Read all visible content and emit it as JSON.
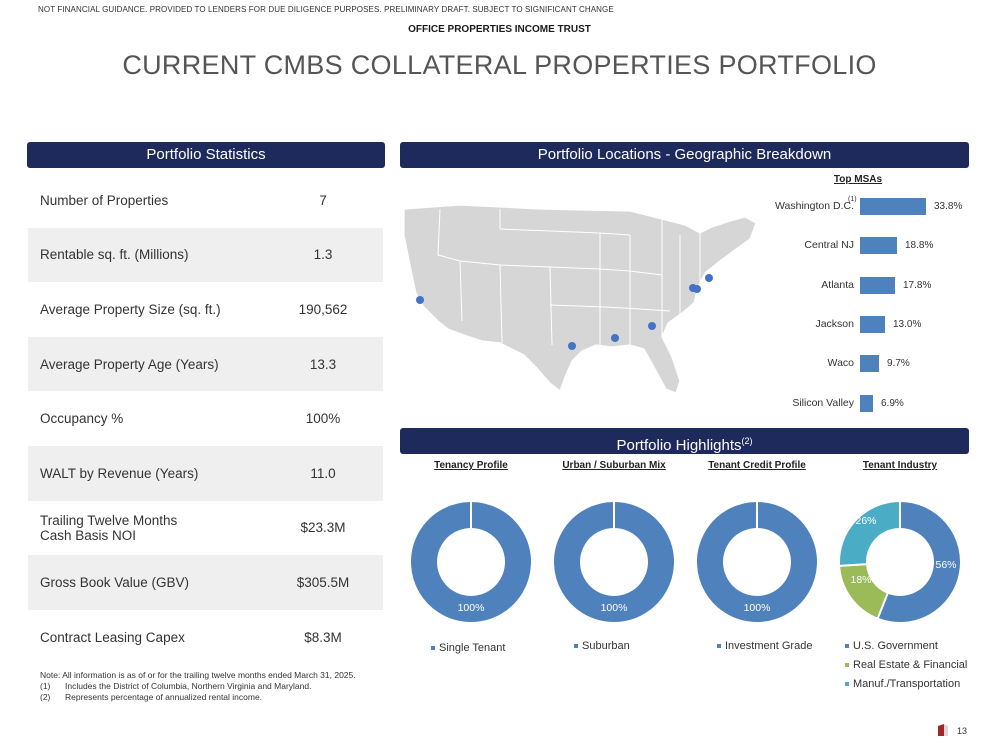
{
  "header": {
    "disclaimer": "NOT FINANCIAL GUIDANCE. PROVIDED TO LENDERS FOR DUE DILIGENCE PURPOSES. PRELIMINARY DRAFT. SUBJECT TO SIGNIFICANT CHANGE",
    "company": "OFFICE PROPERTIES INCOME TRUST",
    "title": "CURRENT CMBS COLLATERAL PROPERTIES PORTFOLIO"
  },
  "stats": {
    "header": "Portfolio Statistics",
    "rows": [
      {
        "label": "Number of Properties",
        "value": "7"
      },
      {
        "label": "Rentable sq. ft. (Millions)",
        "value": "1.3"
      },
      {
        "label": "Average Property Size (sq. ft.)",
        "value": "190,562"
      },
      {
        "label": "Average Property Age (Years)",
        "value": "13.3"
      },
      {
        "label": "Occupancy %",
        "value": "100%"
      },
      {
        "label": "WALT by Revenue (Years)",
        "value": "11.0"
      },
      {
        "label": "Trailing Twelve Months\nCash Basis NOI",
        "value": "$23.3M"
      },
      {
        "label": "Gross Book Value (GBV)",
        "value": "$305.5M"
      },
      {
        "label": "Contract Leasing Capex",
        "value": "$8.3M"
      }
    ]
  },
  "locations": {
    "header": "Portfolio Locations - Geographic Breakdown",
    "map_dot_color": "#4472c4"
  },
  "chart_data": [
    {
      "type": "bar",
      "title": "Top MSAs",
      "categories": [
        "Washington D.C.",
        "Central NJ",
        "Atlanta",
        "Jackson",
        "Waco",
        "Silicon Valley"
      ],
      "values": [
        33.8,
        18.8,
        17.8,
        13.0,
        9.7,
        6.9
      ],
      "value_labels": [
        "33.8%",
        "18.8%",
        "17.8%",
        "13.0%",
        "9.7%",
        "6.9%"
      ],
      "footnote_marker": "(1)",
      "orientation": "horizontal",
      "color": "#4f81bd"
    },
    {
      "type": "pie",
      "title": "Tenancy Profile",
      "slices": [
        {
          "label": "Single Tenant",
          "value": 100,
          "text": "100%",
          "color": "#4f81bd"
        }
      ]
    },
    {
      "type": "pie",
      "title": "Urban / Suburban Mix",
      "slices": [
        {
          "label": "Suburban",
          "value": 100,
          "text": "100%",
          "color": "#4f81bd"
        }
      ]
    },
    {
      "type": "pie",
      "title": "Tenant Credit Profile",
      "slices": [
        {
          "label": "Investment Grade",
          "value": 100,
          "text": "100%",
          "color": "#4f81bd"
        }
      ]
    },
    {
      "type": "pie",
      "title": "Tenant Industry",
      "slices": [
        {
          "label": "U.S. Government",
          "value": 56,
          "text": "56%",
          "color": "#4f81bd"
        },
        {
          "label": "Real Estate & Financial",
          "value": 18,
          "text": "18%",
          "color": "#9bbb59"
        },
        {
          "label": "Manuf./Transportation",
          "value": 26,
          "text": "26%",
          "color": "#4bacc6"
        }
      ]
    }
  ],
  "highlights": {
    "header": "Portfolio Highlights",
    "header_sup": "(2)"
  },
  "notes": {
    "line1": "Note:  All information is as of or for the trailing twelve months ended March 31, 2025.",
    "items": [
      {
        "num": "(1)",
        "text": "Includes the District of Columbia, Northern Virginia and Maryland."
      },
      {
        "num": "(2)",
        "text": "Represents percentage of annualized rental income."
      }
    ]
  },
  "page_number": "13"
}
